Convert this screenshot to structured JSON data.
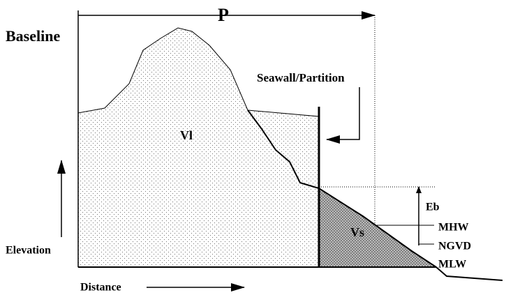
{
  "labels": {
    "p": "P",
    "baseline": "Baseline",
    "seawall": "Seawall/Partition",
    "vl": "Vl",
    "vs": "Vs",
    "eb": "Eb",
    "mhw": "MHW",
    "ngvd": "NGVD",
    "mlw": "MLW",
    "elevation": "Elevation",
    "distance": "Distance"
  }
}
